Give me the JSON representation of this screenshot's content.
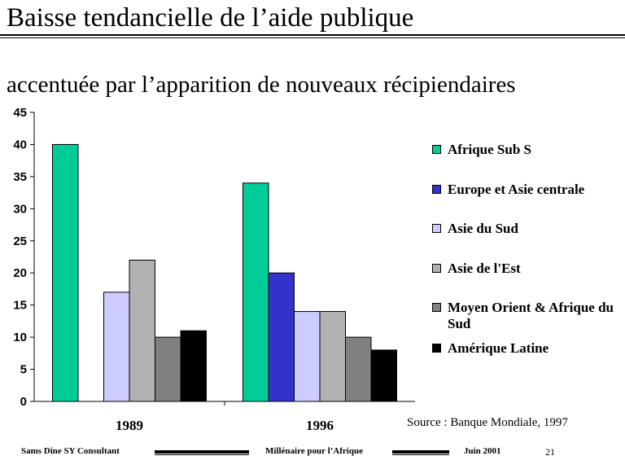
{
  "slide": {
    "title": "Baisse tendancielle de l’aide publique",
    "subtitle": "accentuée par l’apparition  de nouveaux récipiendaires",
    "source": "Source : Banque Mondiale,  1997"
  },
  "footer": {
    "left": "Sams Dine SY Consultant",
    "center": "Millénaire pour l’Afrique",
    "date": "Juin  2001",
    "page": "21"
  },
  "chart_data": {
    "type": "bar",
    "categories": [
      "1989",
      "1996"
    ],
    "ylim": [
      0,
      45
    ],
    "yticks": [
      "0",
      "5",
      "10",
      "15",
      "20",
      "25",
      "30",
      "35",
      "40",
      "45"
    ],
    "grid": false,
    "legend_position": "right",
    "series": [
      {
        "name": "Afrique Sub S",
        "color": "#00cc99",
        "values": [
          40,
          34
        ]
      },
      {
        "name": "Europe et Asie centrale",
        "color": "#3333cc",
        "values": [
          0,
          20
        ]
      },
      {
        "name": "Asie du Sud",
        "color": "#ccccff",
        "values": [
          17,
          14
        ]
      },
      {
        "name": "Asie de l'Est",
        "color": "#b2b2b2",
        "values": [
          22,
          14
        ]
      },
      {
        "name": "Moyen Orient & Afrique du Sud",
        "color": "#808080",
        "values": [
          10,
          10
        ]
      },
      {
        "name": "Amérique Latine",
        "color": "#000000",
        "values": [
          11,
          8
        ]
      }
    ]
  }
}
